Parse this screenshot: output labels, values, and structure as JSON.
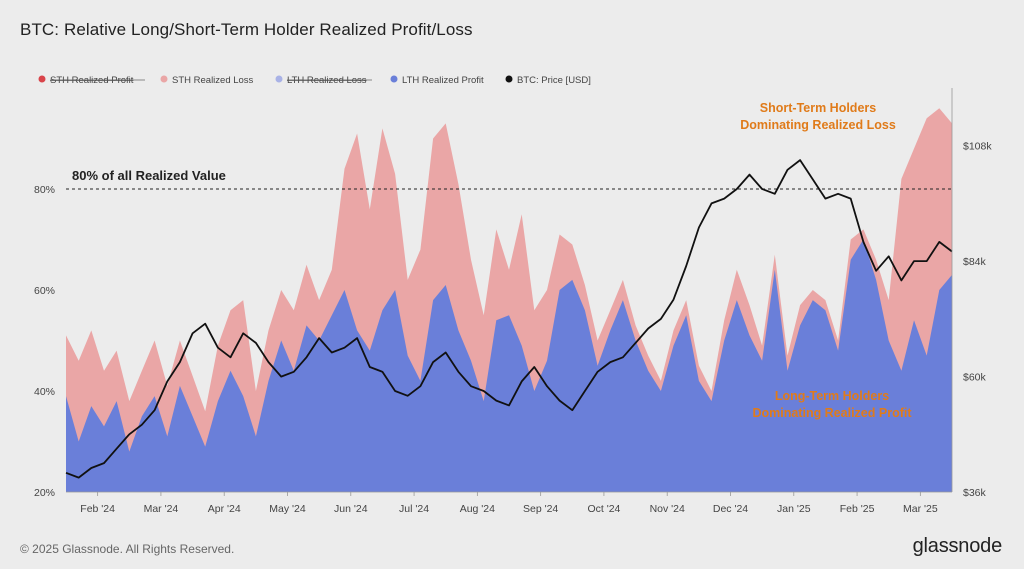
{
  "title": "BTC: Relative Long/Short-Term Holder Realized Profit/Loss",
  "footer": "© 2025 Glassnode. All Rights Reserved.",
  "brand": "glassnode",
  "colors": {
    "sth_profit": "#d9444a",
    "sth_loss": "#eaa6a6",
    "lth_loss": "#a9b2e6",
    "lth_profit": "#6a7fd9",
    "price": "#111111",
    "annotation": "#e07b1a"
  },
  "chart_data": {
    "type": "area",
    "legend": [
      {
        "name": "STH Realized Profit",
        "color": "#d9444a",
        "hidden": true
      },
      {
        "name": "STH Realized Loss",
        "color": "#eaa6a6",
        "hidden": false
      },
      {
        "name": "LTH Realized Loss",
        "color": "#a9b2e6",
        "hidden": true
      },
      {
        "name": "LTH Realized Profit",
        "color": "#6a7fd9",
        "hidden": false
      },
      {
        "name": "BTC: Price [USD]",
        "color": "#111111",
        "hidden": false
      }
    ],
    "x_ticks": [
      "Feb '24",
      "Mar '24",
      "Apr '24",
      "May '24",
      "Jun '24",
      "Jul '24",
      "Aug '24",
      "Sep '24",
      "Oct '24",
      "Nov '24",
      "Dec '24",
      "Jan '25",
      "Feb '25",
      "Mar '25"
    ],
    "y_left": {
      "ticks": [
        "20%",
        "40%",
        "60%",
        "80%"
      ],
      "values": [
        20,
        40,
        60,
        80
      ],
      "range": [
        20,
        100
      ]
    },
    "y_right": {
      "ticks": [
        "$36k",
        "$60k",
        "$84k",
        "$108k"
      ],
      "values": [
        36,
        60,
        84,
        108
      ],
      "range": [
        36,
        120
      ]
    },
    "reference_line": {
      "value": 80,
      "label": "80% of all Realized Value"
    },
    "annotations": [
      {
        "text": "Short-Term Holders Dominating Realized Loss",
        "lines": [
          "Short-Term Holders",
          "Dominating Realized Loss"
        ]
      },
      {
        "text": "Long-Term Holders Dominating Realized Profit",
        "lines": [
          "Long-Term Holders",
          "Dominating Realized Profit"
        ]
      }
    ],
    "x_range": [
      0,
      14
    ],
    "series": [
      {
        "name": "LTH Realized Profit",
        "x": [
          0,
          0.2,
          0.4,
          0.6,
          0.8,
          1,
          1.2,
          1.4,
          1.6,
          1.8,
          2,
          2.2,
          2.4,
          2.6,
          2.8,
          3,
          3.2,
          3.4,
          3.6,
          3.8,
          4,
          4.2,
          4.4,
          4.6,
          4.8,
          5,
          5.2,
          5.4,
          5.6,
          5.8,
          6,
          6.2,
          6.4,
          6.6,
          6.8,
          7,
          7.2,
          7.4,
          7.6,
          7.8,
          8,
          8.2,
          8.4,
          8.6,
          8.8,
          9,
          9.2,
          9.4,
          9.6,
          9.8,
          10,
          10.2,
          10.4,
          10.6,
          10.8,
          11,
          11.2,
          11.4,
          11.6,
          11.8,
          12,
          12.2,
          12.4,
          12.6,
          12.8,
          13,
          13.2,
          13.4,
          13.6,
          13.8,
          14
        ],
        "values": [
          39,
          30,
          37,
          33,
          38,
          28,
          35,
          39,
          31,
          41,
          35,
          29,
          38,
          44,
          39,
          31,
          42,
          50,
          44,
          53,
          50,
          55,
          60,
          52,
          48,
          56,
          60,
          47,
          42,
          58,
          61,
          52,
          46,
          38,
          54,
          55,
          49,
          40,
          46,
          60,
          62,
          56,
          45,
          52,
          58,
          50,
          44,
          40,
          49,
          55,
          42,
          38,
          50,
          58,
          51,
          46,
          64,
          44,
          53,
          58,
          56,
          48,
          66,
          70,
          62,
          50,
          44,
          54,
          47,
          60,
          63
        ]
      },
      {
        "name": "STH Realized Loss (top of stack)",
        "x": [
          0,
          0.2,
          0.4,
          0.6,
          0.8,
          1,
          1.2,
          1.4,
          1.6,
          1.8,
          2,
          2.2,
          2.4,
          2.6,
          2.8,
          3,
          3.2,
          3.4,
          3.6,
          3.8,
          4,
          4.2,
          4.4,
          4.6,
          4.8,
          5,
          5.2,
          5.4,
          5.6,
          5.8,
          6,
          6.2,
          6.4,
          6.6,
          6.8,
          7,
          7.2,
          7.4,
          7.6,
          7.8,
          8,
          8.2,
          8.4,
          8.6,
          8.8,
          9,
          9.2,
          9.4,
          9.6,
          9.8,
          10,
          10.2,
          10.4,
          10.6,
          10.8,
          11,
          11.2,
          11.4,
          11.6,
          11.8,
          12,
          12.2,
          12.4,
          12.6,
          12.8,
          13,
          13.2,
          13.4,
          13.6,
          13.8,
          14
        ],
        "values": [
          51,
          46,
          52,
          44,
          48,
          38,
          44,
          50,
          41,
          50,
          43,
          36,
          49,
          56,
          58,
          40,
          52,
          60,
          56,
          65,
          58,
          64,
          84,
          91,
          76,
          92,
          83,
          62,
          68,
          90,
          93,
          81,
          66,
          55,
          72,
          64,
          75,
          56,
          60,
          71,
          69,
          61,
          50,
          56,
          62,
          53,
          47,
          42,
          52,
          58,
          45,
          40,
          54,
          64,
          57,
          49,
          67,
          47,
          57,
          60,
          58,
          50,
          70,
          72,
          66,
          58,
          82,
          88,
          94,
          96,
          93
        ]
      },
      {
        "name": "BTC: Price [USD] ($k)",
        "x": [
          0,
          0.2,
          0.4,
          0.6,
          0.8,
          1,
          1.2,
          1.4,
          1.6,
          1.8,
          2,
          2.2,
          2.4,
          2.6,
          2.8,
          3,
          3.2,
          3.4,
          3.6,
          3.8,
          4,
          4.2,
          4.4,
          4.6,
          4.8,
          5,
          5.2,
          5.4,
          5.6,
          5.8,
          6,
          6.2,
          6.4,
          6.6,
          6.8,
          7,
          7.2,
          7.4,
          7.6,
          7.8,
          8,
          8.2,
          8.4,
          8.6,
          8.8,
          9,
          9.2,
          9.4,
          9.6,
          9.8,
          10,
          10.2,
          10.4,
          10.6,
          10.8,
          11,
          11.2,
          11.4,
          11.6,
          11.8,
          12,
          12.2,
          12.4,
          12.6,
          12.8,
          13,
          13.2,
          13.4,
          13.6,
          13.8,
          14
        ],
        "values": [
          40,
          39,
          41,
          42,
          45,
          48,
          50,
          53,
          59,
          63,
          69,
          71,
          66,
          64,
          69,
          67,
          63,
          60,
          61,
          64,
          68,
          65,
          66,
          68,
          62,
          61,
          57,
          56,
          58,
          63,
          65,
          61,
          58,
          57,
          55,
          54,
          59,
          62,
          58,
          55,
          53,
          57,
          61,
          63,
          64,
          67,
          70,
          72,
          76,
          83,
          91,
          96,
          97,
          99,
          102,
          99,
          98,
          103,
          105,
          101,
          97,
          98,
          97,
          88,
          82,
          85,
          80,
          84,
          84,
          88,
          86
        ]
      }
    ]
  }
}
